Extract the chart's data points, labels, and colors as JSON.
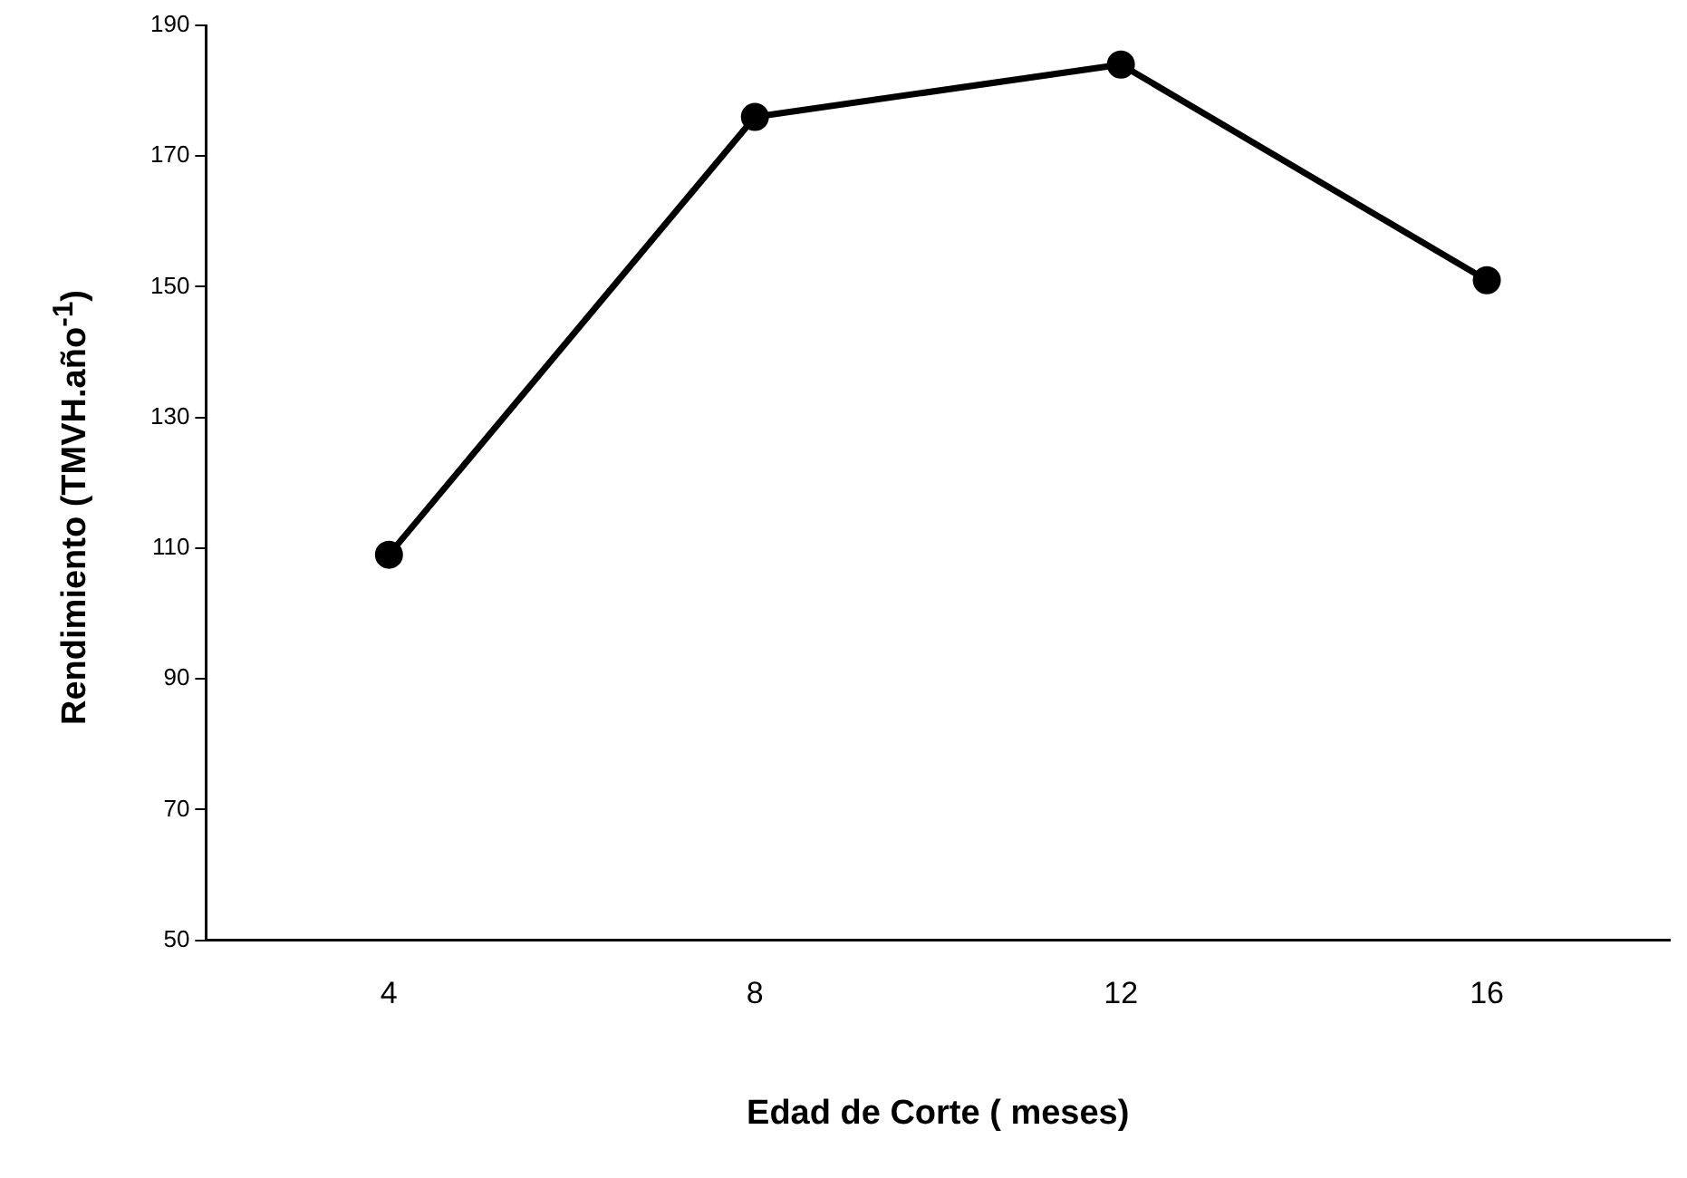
{
  "chart_data": {
    "type": "line",
    "xlabel": "Edad de Corte ( meses)",
    "ylabel": "Rendimiento (TMVH.año$^{-1}$)",
    "categories": [
      "4",
      "8",
      "12",
      "16"
    ],
    "series": [
      {
        "color": "#000000",
        "values": [
          109,
          176,
          184,
          151
        ]
      }
    ],
    "ylim": [
      50,
      190
    ],
    "yticks": [
      50,
      70,
      90,
      110,
      130,
      150,
      170,
      190
    ],
    "grid": false,
    "legend": false,
    "marker": "circle",
    "line_style": "solid"
  }
}
